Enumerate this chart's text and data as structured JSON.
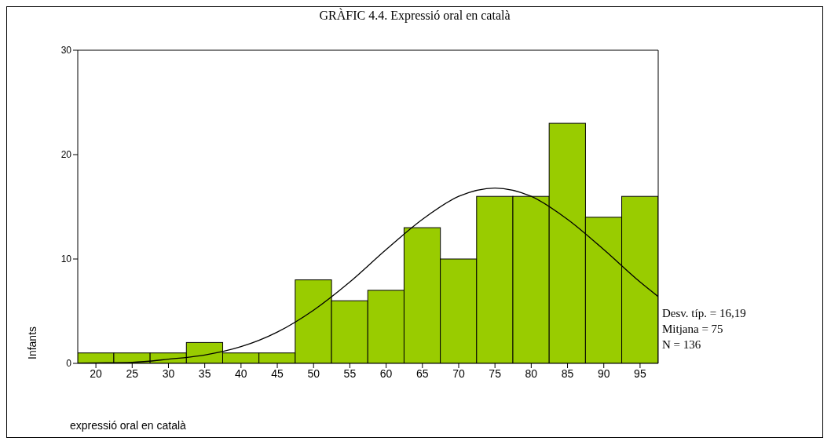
{
  "chart_data": {
    "type": "histogram",
    "title": "GRÀFIC 4.4. Expressió oral en català",
    "xlabel": "expressió oral en català",
    "ylabel": "Infants",
    "bins": [
      17.5,
      22.5,
      27.5,
      32.5,
      37.5,
      42.5,
      47.5,
      52.5,
      57.5,
      62.5,
      67.5,
      72.5,
      77.5,
      82.5,
      87.5,
      92.5,
      97.5
    ],
    "values": [
      1,
      1,
      1,
      2,
      1,
      1,
      8,
      6,
      7,
      13,
      10,
      16,
      16,
      23,
      14,
      16
    ],
    "color": "#99cc00",
    "series": [
      {
        "type": "line",
        "color": "#000000",
        "x": [
          17.5,
          20,
          25,
          30,
          35,
          40,
          45,
          50,
          55,
          60,
          65,
          70,
          75,
          80,
          85,
          90,
          95,
          97.5
        ],
        "values": [
          0.03,
          0.05,
          0.1,
          0.4,
          0.8,
          1.6,
          3.0,
          5.1,
          7.8,
          10.9,
          13.8,
          16.0,
          16.8,
          16.0,
          13.8,
          10.9,
          7.8,
          6.4
        ]
      }
    ],
    "xlim": [
      17.5,
      97.5
    ],
    "xticks": [
      20,
      25,
      30,
      35,
      40,
      45,
      50,
      55,
      60,
      65,
      70,
      75,
      80,
      85,
      90,
      95
    ],
    "ylim": [
      0,
      30
    ],
    "yticks": [
      0,
      10,
      20,
      30
    ],
    "annotations": [
      "Desv. típ. = 16,19",
      "Mitjana = 75",
      "N = 136"
    ]
  }
}
